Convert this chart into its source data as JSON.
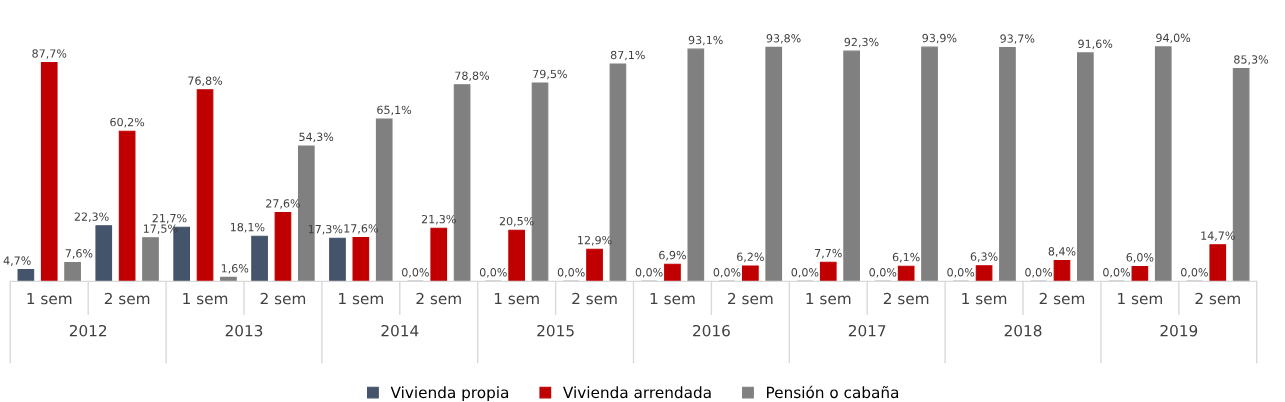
{
  "chart_data": {
    "type": "bar",
    "categories": [
      "1 sem",
      "2 sem",
      "1 sem",
      "2 sem",
      "1 sem",
      "2 sem",
      "1 sem",
      "2 sem",
      "1 sem",
      "2 sem",
      "1 sem",
      "2 sem",
      "1 sem",
      "2 sem",
      "1 sem",
      "2 sem"
    ],
    "annotations": [
      "2012",
      "2013",
      "2014",
      "2015",
      "2016",
      "2017",
      "2018",
      "2019"
    ],
    "series": [
      {
        "name": "Vivienda propia",
        "color": "#44546a",
        "values": [
          4.7,
          22.3,
          21.7,
          18.1,
          17.3,
          0,
          0,
          0,
          0,
          0,
          0,
          0,
          0,
          0,
          0,
          0
        ],
        "value_labels": [
          "4,7%",
          "22,3%",
          "21,7%",
          "18,1%",
          "17,3%",
          "0,0%",
          "0,0%",
          "0,0%",
          "0,0%",
          "0,0%",
          "0,0%",
          "0,0%",
          "0,0%",
          "0,0%",
          "0,0%",
          "0,0%"
        ]
      },
      {
        "name": "Vivienda arrendada",
        "color": "#c00000",
        "values": [
          87.7,
          60.2,
          76.8,
          27.6,
          17.6,
          21.3,
          20.5,
          12.9,
          6.9,
          6.2,
          7.7,
          6.1,
          6.3,
          8.4,
          6.0,
          14.7
        ],
        "value_labels": [
          "87,7%",
          "60,2%",
          "76,8%",
          "27,6%",
          "17,6%",
          "21,3%",
          "20,5%",
          "12,9%",
          "6,9%",
          "6,2%",
          "7,7%",
          "6,1%",
          "6,3%",
          "8,4%",
          "6,0%",
          "14,7%"
        ]
      },
      {
        "name": "Pensión o cabaña",
        "color": "#808080",
        "values": [
          7.6,
          17.5,
          1.6,
          54.3,
          65.1,
          78.8,
          79.5,
          87.1,
          93.1,
          93.8,
          92.3,
          93.9,
          93.7,
          91.6,
          94.0,
          85.3
        ],
        "value_labels": [
          "7,6%",
          "17,5%",
          "1,6%",
          "54,3%",
          "65,1%",
          "78,8%",
          "79,5%",
          "87,1%",
          "93,1%",
          "93,8%",
          "92,3%",
          "93,9%",
          "93,7%",
          "91,6%",
          "94,0%",
          "85,3%"
        ]
      }
    ],
    "legend": "bottom",
    "grid": false
  }
}
